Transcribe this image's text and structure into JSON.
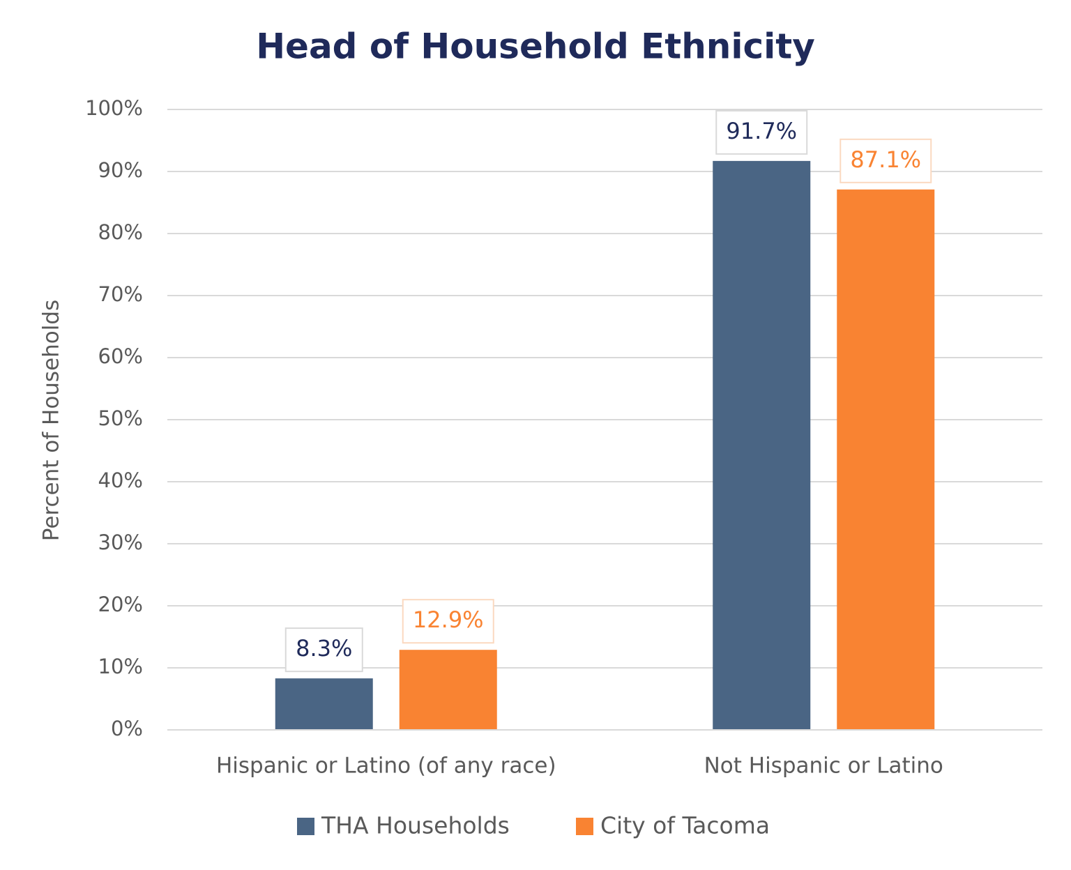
{
  "chart_data": {
    "type": "bar",
    "title": "Head of Household Ethnicity",
    "y_label": "Percent of Households",
    "categories": [
      "Hispanic or Latino (of any race)",
      "Not Hispanic or Latino"
    ],
    "series": [
      {
        "name": "THA Households",
        "color": "#4a6584",
        "values": [
          8.3,
          91.7
        ],
        "value_labels": [
          "8.3%",
          "91.7%"
        ]
      },
      {
        "name": "City of Tacoma",
        "color": "#f98332",
        "values": [
          12.9,
          87.1
        ],
        "value_labels": [
          "12.9%",
          "87.1%"
        ]
      }
    ],
    "ylim": [
      0,
      100
    ],
    "yticks": [
      {
        "value": 0,
        "label": "0%"
      },
      {
        "value": 10,
        "label": "10%"
      },
      {
        "value": 20,
        "label": "20%"
      },
      {
        "value": 30,
        "label": "30%"
      },
      {
        "value": 40,
        "label": "40%"
      },
      {
        "value": 50,
        "label": "50%"
      },
      {
        "value": 60,
        "label": "60%"
      },
      {
        "value": 70,
        "label": "70%"
      },
      {
        "value": 80,
        "label": "80%"
      },
      {
        "value": 90,
        "label": "90%"
      },
      {
        "value": 100,
        "label": "100%"
      }
    ],
    "grid": true,
    "legend": "bottom"
  }
}
